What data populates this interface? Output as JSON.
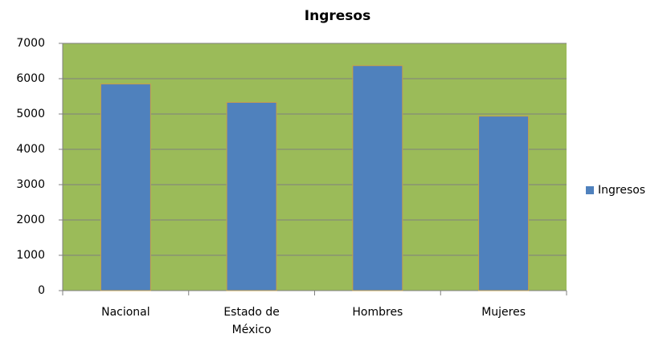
{
  "chart_data": {
    "type": "bar",
    "title": "Ingresos",
    "categories": [
      "Nacional",
      "Estado de México",
      "Hombres",
      "Mujeres"
    ],
    "series": [
      {
        "name": "Ingresos",
        "color": "#4f81bd",
        "values": [
          5850,
          5330,
          6370,
          4940
        ]
      }
    ],
    "ylim": [
      0,
      7000
    ],
    "yticks": [
      0,
      1000,
      2000,
      3000,
      4000,
      5000,
      6000,
      7000
    ],
    "grid": true,
    "plot_background": "#9bbb59",
    "legend": "right"
  }
}
